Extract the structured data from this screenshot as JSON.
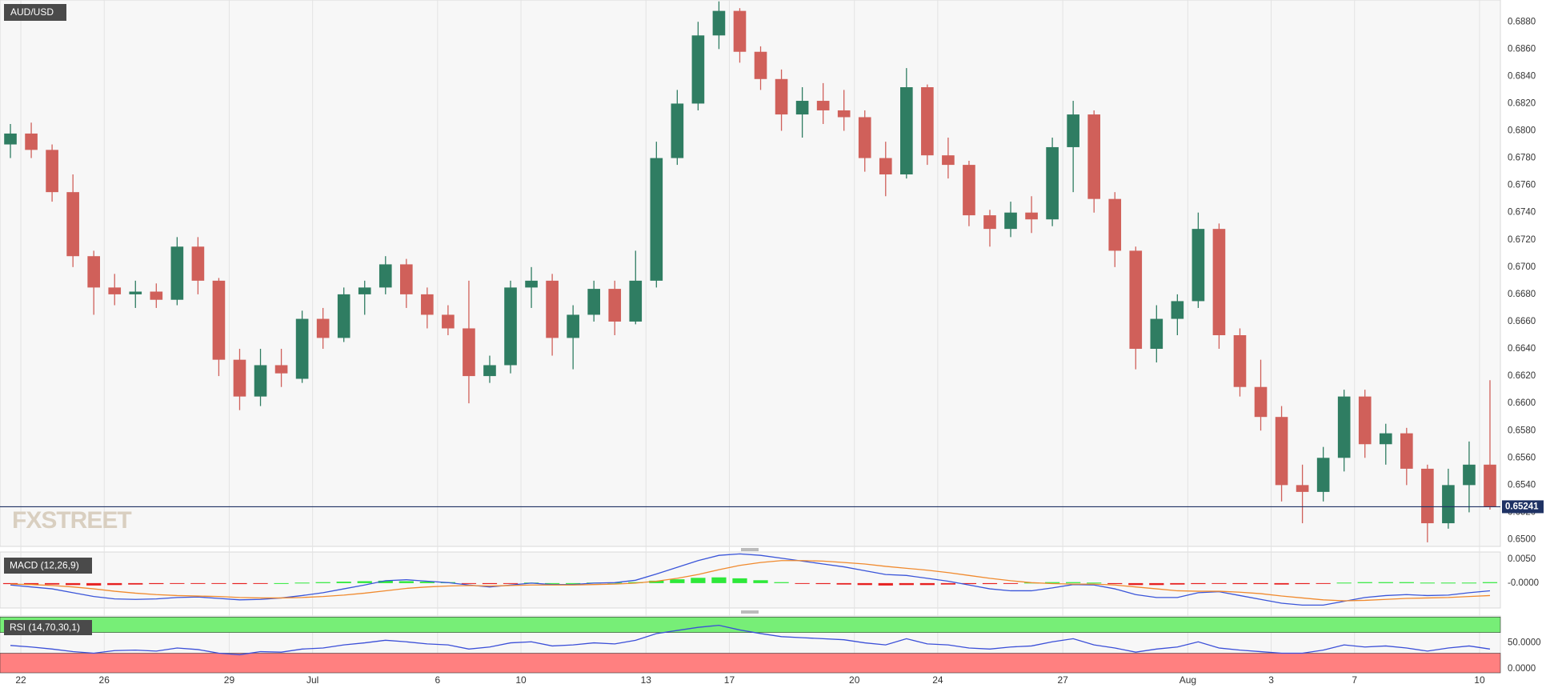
{
  "chart_data": [
    {
      "type": "candlestick",
      "title": "AUD/USD",
      "watermark": "FXSTREET",
      "categories": [
        null,
        "22",
        null,
        null,
        null,
        "26",
        null,
        null,
        null,
        null,
        null,
        "29",
        null,
        null,
        null,
        "Jul",
        null,
        null,
        null,
        null,
        null,
        "6",
        null,
        null,
        null,
        "10",
        null,
        null,
        null,
        null,
        null,
        "13",
        null,
        null,
        null,
        "17",
        null,
        null,
        null,
        null,
        null,
        "20",
        null,
        null,
        null,
        "24",
        null,
        null,
        null,
        null,
        null,
        "27",
        null,
        null,
        null,
        null,
        null,
        "Aug",
        null,
        null,
        null,
        "3",
        null,
        null,
        null,
        "7",
        null,
        null,
        null,
        null,
        null,
        "10"
      ],
      "open": [
        0.679,
        0.6798,
        0.6786,
        0.6755,
        0.6708,
        0.6685,
        0.668,
        0.6682,
        0.6676,
        0.6715,
        0.669,
        0.6632,
        0.6605,
        0.6628,
        0.6618,
        0.6662,
        0.6648,
        0.668,
        0.6685,
        0.6702,
        0.668,
        0.6665,
        0.6655,
        0.662,
        0.6628,
        0.6685,
        0.669,
        0.6648,
        0.6665,
        0.6684,
        0.666,
        0.669,
        0.678,
        0.682,
        0.687,
        0.6888,
        0.6858,
        0.6838,
        0.6812,
        0.6822,
        0.6815,
        0.681,
        0.678,
        0.6768,
        0.6832,
        0.6782,
        0.6775,
        0.6738,
        0.6728,
        0.674,
        0.6735,
        0.6788,
        0.6812,
        0.675,
        0.6712,
        0.664,
        0.6662,
        0.6675,
        0.6728,
        0.665,
        0.6612,
        0.659,
        0.654,
        0.6535,
        0.656,
        0.6605,
        0.657,
        0.6578,
        0.6552,
        0.6512,
        0.654,
        0.6555
      ],
      "high": [
        0.6805,
        0.6806,
        0.679,
        0.6768,
        0.6712,
        0.6695,
        0.669,
        0.6688,
        0.6722,
        0.6722,
        0.6692,
        0.664,
        0.664,
        0.664,
        0.6668,
        0.667,
        0.6685,
        0.669,
        0.6708,
        0.6706,
        0.6685,
        0.6672,
        0.669,
        0.6635,
        0.669,
        0.67,
        0.6695,
        0.6672,
        0.669,
        0.669,
        0.6712,
        0.6792,
        0.683,
        0.688,
        0.6895,
        0.689,
        0.6862,
        0.6845,
        0.6832,
        0.6835,
        0.683,
        0.6815,
        0.6792,
        0.6846,
        0.6834,
        0.6795,
        0.6778,
        0.6742,
        0.6748,
        0.6752,
        0.6795,
        0.6822,
        0.6815,
        0.6755,
        0.6715,
        0.6672,
        0.668,
        0.674,
        0.6732,
        0.6655,
        0.6632,
        0.6598,
        0.6555,
        0.6568,
        0.661,
        0.661,
        0.6585,
        0.6582,
        0.6555,
        0.6552,
        0.6572,
        0.6617
      ],
      "low": [
        0.678,
        0.678,
        0.6748,
        0.67,
        0.6665,
        0.6672,
        0.667,
        0.667,
        0.6672,
        0.668,
        0.662,
        0.6595,
        0.6598,
        0.6612,
        0.6615,
        0.664,
        0.6645,
        0.6665,
        0.668,
        0.667,
        0.6655,
        0.665,
        0.66,
        0.6615,
        0.6622,
        0.667,
        0.6635,
        0.6625,
        0.666,
        0.665,
        0.6658,
        0.6685,
        0.6775,
        0.6815,
        0.686,
        0.685,
        0.683,
        0.68,
        0.6795,
        0.6805,
        0.68,
        0.677,
        0.6752,
        0.6765,
        0.6775,
        0.6765,
        0.673,
        0.6715,
        0.6722,
        0.6725,
        0.673,
        0.6755,
        0.674,
        0.67,
        0.6625,
        0.663,
        0.665,
        0.667,
        0.664,
        0.6605,
        0.658,
        0.6528,
        0.6512,
        0.6528,
        0.655,
        0.656,
        0.6555,
        0.654,
        0.6498,
        0.6508,
        0.652,
        0.6522
      ],
      "close": [
        0.6798,
        0.6786,
        0.6755,
        0.6708,
        0.6685,
        0.668,
        0.6682,
        0.6676,
        0.6715,
        0.669,
        0.6632,
        0.6605,
        0.6628,
        0.6622,
        0.6662,
        0.6648,
        0.668,
        0.6685,
        0.6702,
        0.668,
        0.6665,
        0.6655,
        0.662,
        0.6628,
        0.6685,
        0.669,
        0.6648,
        0.6665,
        0.6684,
        0.666,
        0.669,
        0.678,
        0.682,
        0.687,
        0.6888,
        0.6858,
        0.6838,
        0.6812,
        0.6822,
        0.6815,
        0.681,
        0.678,
        0.6768,
        0.6832,
        0.6782,
        0.6775,
        0.6738,
        0.6728,
        0.674,
        0.6735,
        0.6788,
        0.6812,
        0.675,
        0.6712,
        0.664,
        0.6662,
        0.6675,
        0.6728,
        0.665,
        0.6612,
        0.659,
        0.654,
        0.6535,
        0.656,
        0.6605,
        0.657,
        0.6578,
        0.6552,
        0.6512,
        0.654,
        0.6555,
        0.65241
      ],
      "up_color": "#2f7d62",
      "down_color": "#d0605a",
      "ylim": [
        0.6495,
        0.6896
      ],
      "yticks": [
        {
          "value": 0.65,
          "label": "0.6500"
        },
        {
          "value": 0.652,
          "label": "0.6520"
        },
        {
          "value": 0.654,
          "label": "0.6540"
        },
        {
          "value": 0.656,
          "label": "0.6560"
        },
        {
          "value": 0.658,
          "label": "0.6580"
        },
        {
          "value": 0.66,
          "label": "0.6600"
        },
        {
          "value": 0.662,
          "label": "0.6620"
        },
        {
          "value": 0.664,
          "label": "0.6640"
        },
        {
          "value": 0.666,
          "label": "0.6660"
        },
        {
          "value": 0.668,
          "label": "0.6680"
        },
        {
          "value": 0.67,
          "label": "0.6700"
        },
        {
          "value": 0.672,
          "label": "0.6720"
        },
        {
          "value": 0.674,
          "label": "0.6740"
        },
        {
          "value": 0.676,
          "label": "0.6760"
        },
        {
          "value": 0.678,
          "label": "0.6780"
        },
        {
          "value": 0.68,
          "label": "0.6800"
        },
        {
          "value": 0.682,
          "label": "0.6820"
        },
        {
          "value": 0.684,
          "label": "0.6840"
        },
        {
          "value": 0.686,
          "label": "0.6860"
        },
        {
          "value": 0.688,
          "label": "0.6880"
        }
      ],
      "last_price": {
        "value": 0.65241,
        "label": "0.65241",
        "color": "#1f3264"
      },
      "grid": true
    },
    {
      "type": "macd",
      "title": "MACD (12,26,9)",
      "series": [
        {
          "color": "#3a55d9",
          "values": [
            -0.0004,
            -0.0008,
            -0.0012,
            -0.002,
            -0.0028,
            -0.0033,
            -0.0034,
            -0.0033,
            -0.003,
            -0.0029,
            -0.0032,
            -0.0035,
            -0.0034,
            -0.0031,
            -0.0026,
            -0.002,
            -0.0012,
            -0.0004,
            0.0005,
            0.0007,
            0.0004,
            0.0001,
            -0.0004,
            -0.0008,
            -0.0004,
            0,
            -0.0003,
            -0.0003,
            0,
            0.0001,
            0.0006,
            0.0019,
            0.0033,
            0.0047,
            0.0058,
            0.0061,
            0.0058,
            0.0052,
            0.0046,
            0.004,
            0.0034,
            0.0026,
            0.0018,
            0.0016,
            0.001,
            0.0004,
            -0.0004,
            -0.0012,
            -0.0016,
            -0.0016,
            -0.001,
            -0.0003,
            -0.0004,
            -0.0012,
            -0.0024,
            -0.003,
            -0.003,
            -0.002,
            -0.0018,
            -0.0026,
            -0.0034,
            -0.0042,
            -0.0046,
            -0.0046,
            -0.0038,
            -0.003,
            -0.0026,
            -0.0024,
            -0.0026,
            -0.0025,
            -0.002,
            -0.0016
          ]
        },
        {
          "color": "#f08a2e",
          "values": [
            -0.0002,
            -0.0003,
            -0.0005,
            -0.0008,
            -0.0012,
            -0.0017,
            -0.0021,
            -0.0024,
            -0.0026,
            -0.0027,
            -0.0028,
            -0.003,
            -0.0031,
            -0.0031,
            -0.003,
            -0.0028,
            -0.0025,
            -0.0021,
            -0.0016,
            -0.0011,
            -0.0008,
            -0.0006,
            -0.0005,
            -0.0006,
            -0.0005,
            -0.0004,
            -0.0004,
            -0.0004,
            -0.0003,
            -0.0002,
            0,
            0.0004,
            0.001,
            0.0018,
            0.0028,
            0.0037,
            0.0043,
            0.0047,
            0.0047,
            0.0046,
            0.0043,
            0.004,
            0.0035,
            0.0031,
            0.0027,
            0.0022,
            0.0016,
            0.001,
            0.0005,
            0.0001,
            -0.0001,
            -0.0002,
            -0.0002,
            -0.0004,
            -0.0008,
            -0.0012,
            -0.0016,
            -0.0017,
            -0.0017,
            -0.0019,
            -0.0022,
            -0.0027,
            -0.0031,
            -0.0035,
            -0.0037,
            -0.0036,
            -0.0034,
            -0.0032,
            -0.0031,
            -0.003,
            -0.0028,
            -0.0026
          ]
        }
      ],
      "histogram": {
        "up_color": "#2ee83a",
        "down_color": "#e62020",
        "values": [
          -0.0002,
          -0.0003,
          -0.0003,
          -0.0004,
          -0.0005,
          -0.0004,
          -0.0003,
          -0.0002,
          -0.0001,
          -0.0001,
          -0.0001,
          -0.0002,
          -0.0001,
          0,
          0.0001,
          0.0002,
          0.0003,
          0.0004,
          0.0005,
          0.0004,
          0.0003,
          0.0002,
          -0.0001,
          -0.0002,
          -0.0001,
          0.0001,
          0,
          0,
          0.0001,
          0.0001,
          0.0002,
          0.0005,
          0.0008,
          0.0011,
          0.0012,
          0.001,
          0.0006,
          0.0002,
          -0.0001,
          -0.0002,
          -0.0003,
          -0.0004,
          -0.0005,
          -0.0004,
          -0.0004,
          -0.0003,
          -0.0002,
          -0.0002,
          -0.0001,
          0.0001,
          0.0002,
          0.0002,
          0.0001,
          -0.0002,
          -0.0004,
          -0.0004,
          -0.0003,
          -0.0002,
          -0.0001,
          -0.0002,
          -0.0002,
          -0.0003,
          -0.0002,
          -0.0001,
          0.0001,
          0.0002,
          0.0002,
          0.0002,
          0.0001,
          0.0001,
          0.0001,
          0.0002
        ]
      },
      "ylim": [
        -0.0052,
        0.0065
      ],
      "yticks": [
        {
          "value": 0.005,
          "label": "0.0050"
        },
        {
          "value": 0,
          "label": "-0.0000"
        }
      ]
    },
    {
      "type": "rsi",
      "title": "RSI (14,70,30,1)",
      "series": [
        {
          "color": "#3b4fd8",
          "values": [
            45,
            42,
            38,
            33,
            30,
            35,
            36,
            34,
            40,
            37,
            30,
            27,
            33,
            32,
            38,
            40,
            46,
            50,
            55,
            52,
            48,
            46,
            38,
            42,
            50,
            52,
            44,
            46,
            50,
            48,
            55,
            68,
            74,
            80,
            84,
            75,
            68,
            62,
            60,
            58,
            56,
            50,
            46,
            58,
            48,
            46,
            40,
            38,
            42,
            44,
            52,
            58,
            46,
            40,
            32,
            38,
            42,
            52,
            40,
            36,
            33,
            30,
            30,
            36,
            46,
            42,
            44,
            40,
            34,
            40,
            44,
            38
          ]
        }
      ],
      "bands": [
        {
          "from": 70,
          "to": 100,
          "color": "#77ee77"
        },
        {
          "from": -8,
          "to": 30,
          "color": "#ff8080"
        }
      ],
      "ylim": [
        -8,
        102
      ],
      "yticks": [
        {
          "value": 50,
          "label": "50.0000"
        },
        {
          "value": 0,
          "label": "0.0000"
        }
      ]
    }
  ]
}
